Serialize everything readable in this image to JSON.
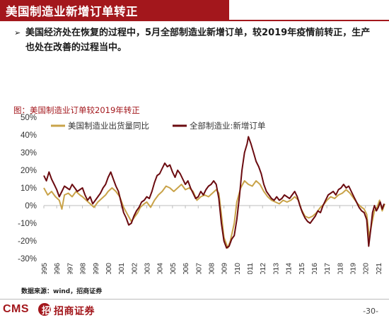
{
  "slide": {
    "title": "美国制造业新增订单转正",
    "bullet_mark": "➢",
    "bullet_text": "美国经济处在恢复的过程中，5月全部制造业新增订单，较2019年疫情前转正，生产也处在改善的过程当中。",
    "chart_caption": "图：美国制造业订单较2019年转正",
    "source": "数据来源：wind，招商证券",
    "logo_cms": "CMS",
    "logo_badge": "招",
    "logo_name": "招商证券",
    "page_number": "-30-"
  },
  "colors": {
    "brand": "#a3171c",
    "series_shipments": "#c9a349",
    "series_orders": "#6b0b10",
    "axis": "#bdbdbd"
  },
  "chart_data": {
    "type": "line",
    "title": "图：美国制造业订单较2019年转正",
    "ylim": [
      -30,
      50
    ],
    "yticks": [
      "50%",
      "40%",
      "30%",
      "20%",
      "10%",
      "0%",
      "-10%",
      "-20%",
      "-30%"
    ],
    "ytick_values": [
      50,
      40,
      30,
      20,
      10,
      0,
      -10,
      -20,
      -30
    ],
    "xlim": [
      1995.0,
      2021.5
    ],
    "xticks": [
      "1995",
      "1996",
      "1997",
      "1998",
      "1999",
      "2000",
      "2001",
      "2002",
      "2003",
      "2004",
      "2005",
      "2006",
      "2007",
      "2008",
      "2009",
      "2010",
      "2011",
      "2012",
      "2013",
      "2014",
      "2015",
      "2016",
      "2017",
      "2018",
      "2019",
      "2020",
      "2021"
    ],
    "xtick_values": [
      1995,
      1996,
      1997,
      1998,
      1999,
      2000,
      2001,
      2002,
      2003,
      2004,
      2005,
      2006,
      2007,
      2008,
      2009,
      2010,
      2011,
      2012,
      2013,
      2014,
      2015,
      2016,
      2017,
      2018,
      2019,
      2020,
      2021
    ],
    "legend_position": "top-left",
    "grid": false,
    "series": [
      {
        "name": "美国制造业出货量同比",
        "key": "shipments",
        "points": [
          [
            1995.0,
            10
          ],
          [
            1995.3,
            6
          ],
          [
            1995.6,
            8
          ],
          [
            1995.9,
            5
          ],
          [
            1996.2,
            3
          ],
          [
            1996.4,
            -2
          ],
          [
            1996.6,
            6
          ],
          [
            1996.9,
            7
          ],
          [
            1997.2,
            5
          ],
          [
            1997.5,
            8
          ],
          [
            1997.8,
            6
          ],
          [
            1998.0,
            5
          ],
          [
            1998.3,
            3
          ],
          [
            1998.6,
            1
          ],
          [
            1998.9,
            -1
          ],
          [
            1999.2,
            2
          ],
          [
            1999.5,
            4
          ],
          [
            1999.8,
            6
          ],
          [
            2000.0,
            8
          ],
          [
            2000.3,
            10
          ],
          [
            2000.6,
            8
          ],
          [
            2000.9,
            5
          ],
          [
            2001.2,
            -1
          ],
          [
            2001.5,
            -5
          ],
          [
            2001.8,
            -9
          ],
          [
            2002.0,
            -7
          ],
          [
            2002.3,
            -4
          ],
          [
            2002.5,
            -1
          ],
          [
            2002.8,
            1
          ],
          [
            2003.0,
            2
          ],
          [
            2003.3,
            -1
          ],
          [
            2003.6,
            3
          ],
          [
            2003.9,
            6
          ],
          [
            2004.2,
            8
          ],
          [
            2004.5,
            11
          ],
          [
            2004.8,
            10
          ],
          [
            2005.1,
            8
          ],
          [
            2005.4,
            10
          ],
          [
            2005.7,
            12
          ],
          [
            2006.0,
            9
          ],
          [
            2006.3,
            10
          ],
          [
            2006.6,
            8
          ],
          [
            2006.9,
            3
          ],
          [
            2007.2,
            5
          ],
          [
            2007.5,
            6
          ],
          [
            2007.8,
            5
          ],
          [
            2008.1,
            7
          ],
          [
            2008.4,
            9
          ],
          [
            2008.6,
            7
          ],
          [
            2008.8,
            -5
          ],
          [
            2009.0,
            -18
          ],
          [
            2009.3,
            -24
          ],
          [
            2009.5,
            -20
          ],
          [
            2009.8,
            -10
          ],
          [
            2010.0,
            2
          ],
          [
            2010.3,
            10
          ],
          [
            2010.6,
            14
          ],
          [
            2010.9,
            12
          ],
          [
            2011.2,
            11
          ],
          [
            2011.5,
            14
          ],
          [
            2011.8,
            12
          ],
          [
            2012.1,
            8
          ],
          [
            2012.4,
            5
          ],
          [
            2012.7,
            3
          ],
          [
            2013.0,
            2
          ],
          [
            2013.3,
            1
          ],
          [
            2013.6,
            3
          ],
          [
            2013.9,
            2
          ],
          [
            2014.2,
            3
          ],
          [
            2014.5,
            5
          ],
          [
            2014.8,
            3
          ],
          [
            2015.0,
            -2
          ],
          [
            2015.3,
            -6
          ],
          [
            2015.6,
            -7
          ],
          [
            2015.9,
            -6
          ],
          [
            2016.2,
            -4
          ],
          [
            2016.5,
            -1
          ],
          [
            2016.8,
            1
          ],
          [
            2017.0,
            3
          ],
          [
            2017.3,
            5
          ],
          [
            2017.6,
            4
          ],
          [
            2017.9,
            6
          ],
          [
            2018.2,
            7
          ],
          [
            2018.5,
            9
          ],
          [
            2018.8,
            7
          ],
          [
            2019.1,
            4
          ],
          [
            2019.4,
            1
          ],
          [
            2019.7,
            -1
          ],
          [
            2019.9,
            -2
          ],
          [
            2020.1,
            -5
          ],
          [
            2020.3,
            -18
          ],
          [
            2020.5,
            -10
          ],
          [
            2020.7,
            -3
          ],
          [
            2020.9,
            -1
          ],
          [
            2021.1,
            3
          ],
          [
            2021.3,
            -3
          ],
          [
            2021.5,
            1
          ]
        ]
      },
      {
        "name": "全部制造业:新增订单",
        "key": "orders",
        "points": [
          [
            1995.0,
            17
          ],
          [
            1995.2,
            14
          ],
          [
            1995.4,
            19
          ],
          [
            1995.6,
            15
          ],
          [
            1995.8,
            12
          ],
          [
            1996.0,
            9
          ],
          [
            1996.2,
            5
          ],
          [
            1996.4,
            8
          ],
          [
            1996.6,
            11
          ],
          [
            1996.8,
            10
          ],
          [
            1997.0,
            9
          ],
          [
            1997.2,
            12
          ],
          [
            1997.4,
            10
          ],
          [
            1997.6,
            8
          ],
          [
            1997.8,
            9
          ],
          [
            1998.0,
            10
          ],
          [
            1998.2,
            6
          ],
          [
            1998.4,
            3
          ],
          [
            1998.6,
            5
          ],
          [
            1998.8,
            1
          ],
          [
            1999.0,
            3
          ],
          [
            1999.2,
            5
          ],
          [
            1999.4,
            7
          ],
          [
            1999.6,
            10
          ],
          [
            1999.8,
            12
          ],
          [
            2000.0,
            16
          ],
          [
            2000.2,
            19
          ],
          [
            2000.4,
            15
          ],
          [
            2000.6,
            11
          ],
          [
            2000.8,
            8
          ],
          [
            2001.0,
            2
          ],
          [
            2001.2,
            -4
          ],
          [
            2001.4,
            -7
          ],
          [
            2001.6,
            -11
          ],
          [
            2001.8,
            -10
          ],
          [
            2002.0,
            -6
          ],
          [
            2002.2,
            -3
          ],
          [
            2002.4,
            -1
          ],
          [
            2002.6,
            2
          ],
          [
            2002.8,
            3
          ],
          [
            2003.0,
            5
          ],
          [
            2003.2,
            4
          ],
          [
            2003.4,
            8
          ],
          [
            2003.6,
            13
          ],
          [
            2003.8,
            17
          ],
          [
            2004.0,
            18
          ],
          [
            2004.2,
            21
          ],
          [
            2004.4,
            24
          ],
          [
            2004.6,
            22
          ],
          [
            2004.8,
            23
          ],
          [
            2005.0,
            19
          ],
          [
            2005.2,
            16
          ],
          [
            2005.4,
            20
          ],
          [
            2005.6,
            18
          ],
          [
            2005.8,
            15
          ],
          [
            2006.0,
            12
          ],
          [
            2006.2,
            14
          ],
          [
            2006.4,
            10
          ],
          [
            2006.6,
            7
          ],
          [
            2006.8,
            4
          ],
          [
            2007.0,
            5
          ],
          [
            2007.2,
            8
          ],
          [
            2007.4,
            6
          ],
          [
            2007.6,
            9
          ],
          [
            2007.8,
            11
          ],
          [
            2008.0,
            12
          ],
          [
            2008.2,
            14
          ],
          [
            2008.4,
            12
          ],
          [
            2008.6,
            4
          ],
          [
            2008.8,
            -10
          ],
          [
            2009.0,
            -20
          ],
          [
            2009.2,
            -24
          ],
          [
            2009.4,
            -23
          ],
          [
            2009.6,
            -19
          ],
          [
            2009.8,
            -17
          ],
          [
            2010.0,
            -8
          ],
          [
            2010.2,
            5
          ],
          [
            2010.4,
            20
          ],
          [
            2010.6,
            30
          ],
          [
            2010.8,
            35
          ],
          [
            2010.9,
            39
          ],
          [
            2011.1,
            35
          ],
          [
            2011.3,
            30
          ],
          [
            2011.5,
            25
          ],
          [
            2011.7,
            22
          ],
          [
            2011.9,
            18
          ],
          [
            2012.1,
            12
          ],
          [
            2012.3,
            8
          ],
          [
            2012.5,
            6
          ],
          [
            2012.7,
            4
          ],
          [
            2012.9,
            3
          ],
          [
            2013.1,
            5
          ],
          [
            2013.3,
            3
          ],
          [
            2013.5,
            4
          ],
          [
            2013.7,
            6
          ],
          [
            2013.9,
            5
          ],
          [
            2014.1,
            4
          ],
          [
            2014.3,
            6
          ],
          [
            2014.5,
            8
          ],
          [
            2014.7,
            5
          ],
          [
            2014.9,
            0
          ],
          [
            2015.1,
            -4
          ],
          [
            2015.3,
            -7
          ],
          [
            2015.5,
            -9
          ],
          [
            2015.7,
            -10
          ],
          [
            2015.9,
            -8
          ],
          [
            2016.1,
            -6
          ],
          [
            2016.3,
            -3
          ],
          [
            2016.5,
            -4
          ],
          [
            2016.7,
            0
          ],
          [
            2016.9,
            3
          ],
          [
            2017.1,
            6
          ],
          [
            2017.3,
            7
          ],
          [
            2017.5,
            8
          ],
          [
            2017.7,
            6
          ],
          [
            2017.9,
            9
          ],
          [
            2018.1,
            10
          ],
          [
            2018.3,
            12
          ],
          [
            2018.5,
            10
          ],
          [
            2018.7,
            11
          ],
          [
            2018.9,
            8
          ],
          [
            2019.1,
            5
          ],
          [
            2019.3,
            2
          ],
          [
            2019.5,
            -1
          ],
          [
            2019.7,
            -3
          ],
          [
            2019.9,
            -4
          ],
          [
            2020.1,
            -8
          ],
          [
            2020.25,
            -23
          ],
          [
            2020.4,
            -14
          ],
          [
            2020.55,
            -4
          ],
          [
            2020.7,
            0
          ],
          [
            2020.85,
            -3
          ],
          [
            2021.0,
            -1
          ],
          [
            2021.15,
            2
          ],
          [
            2021.3,
            -2
          ],
          [
            2021.45,
            1
          ]
        ]
      }
    ]
  }
}
